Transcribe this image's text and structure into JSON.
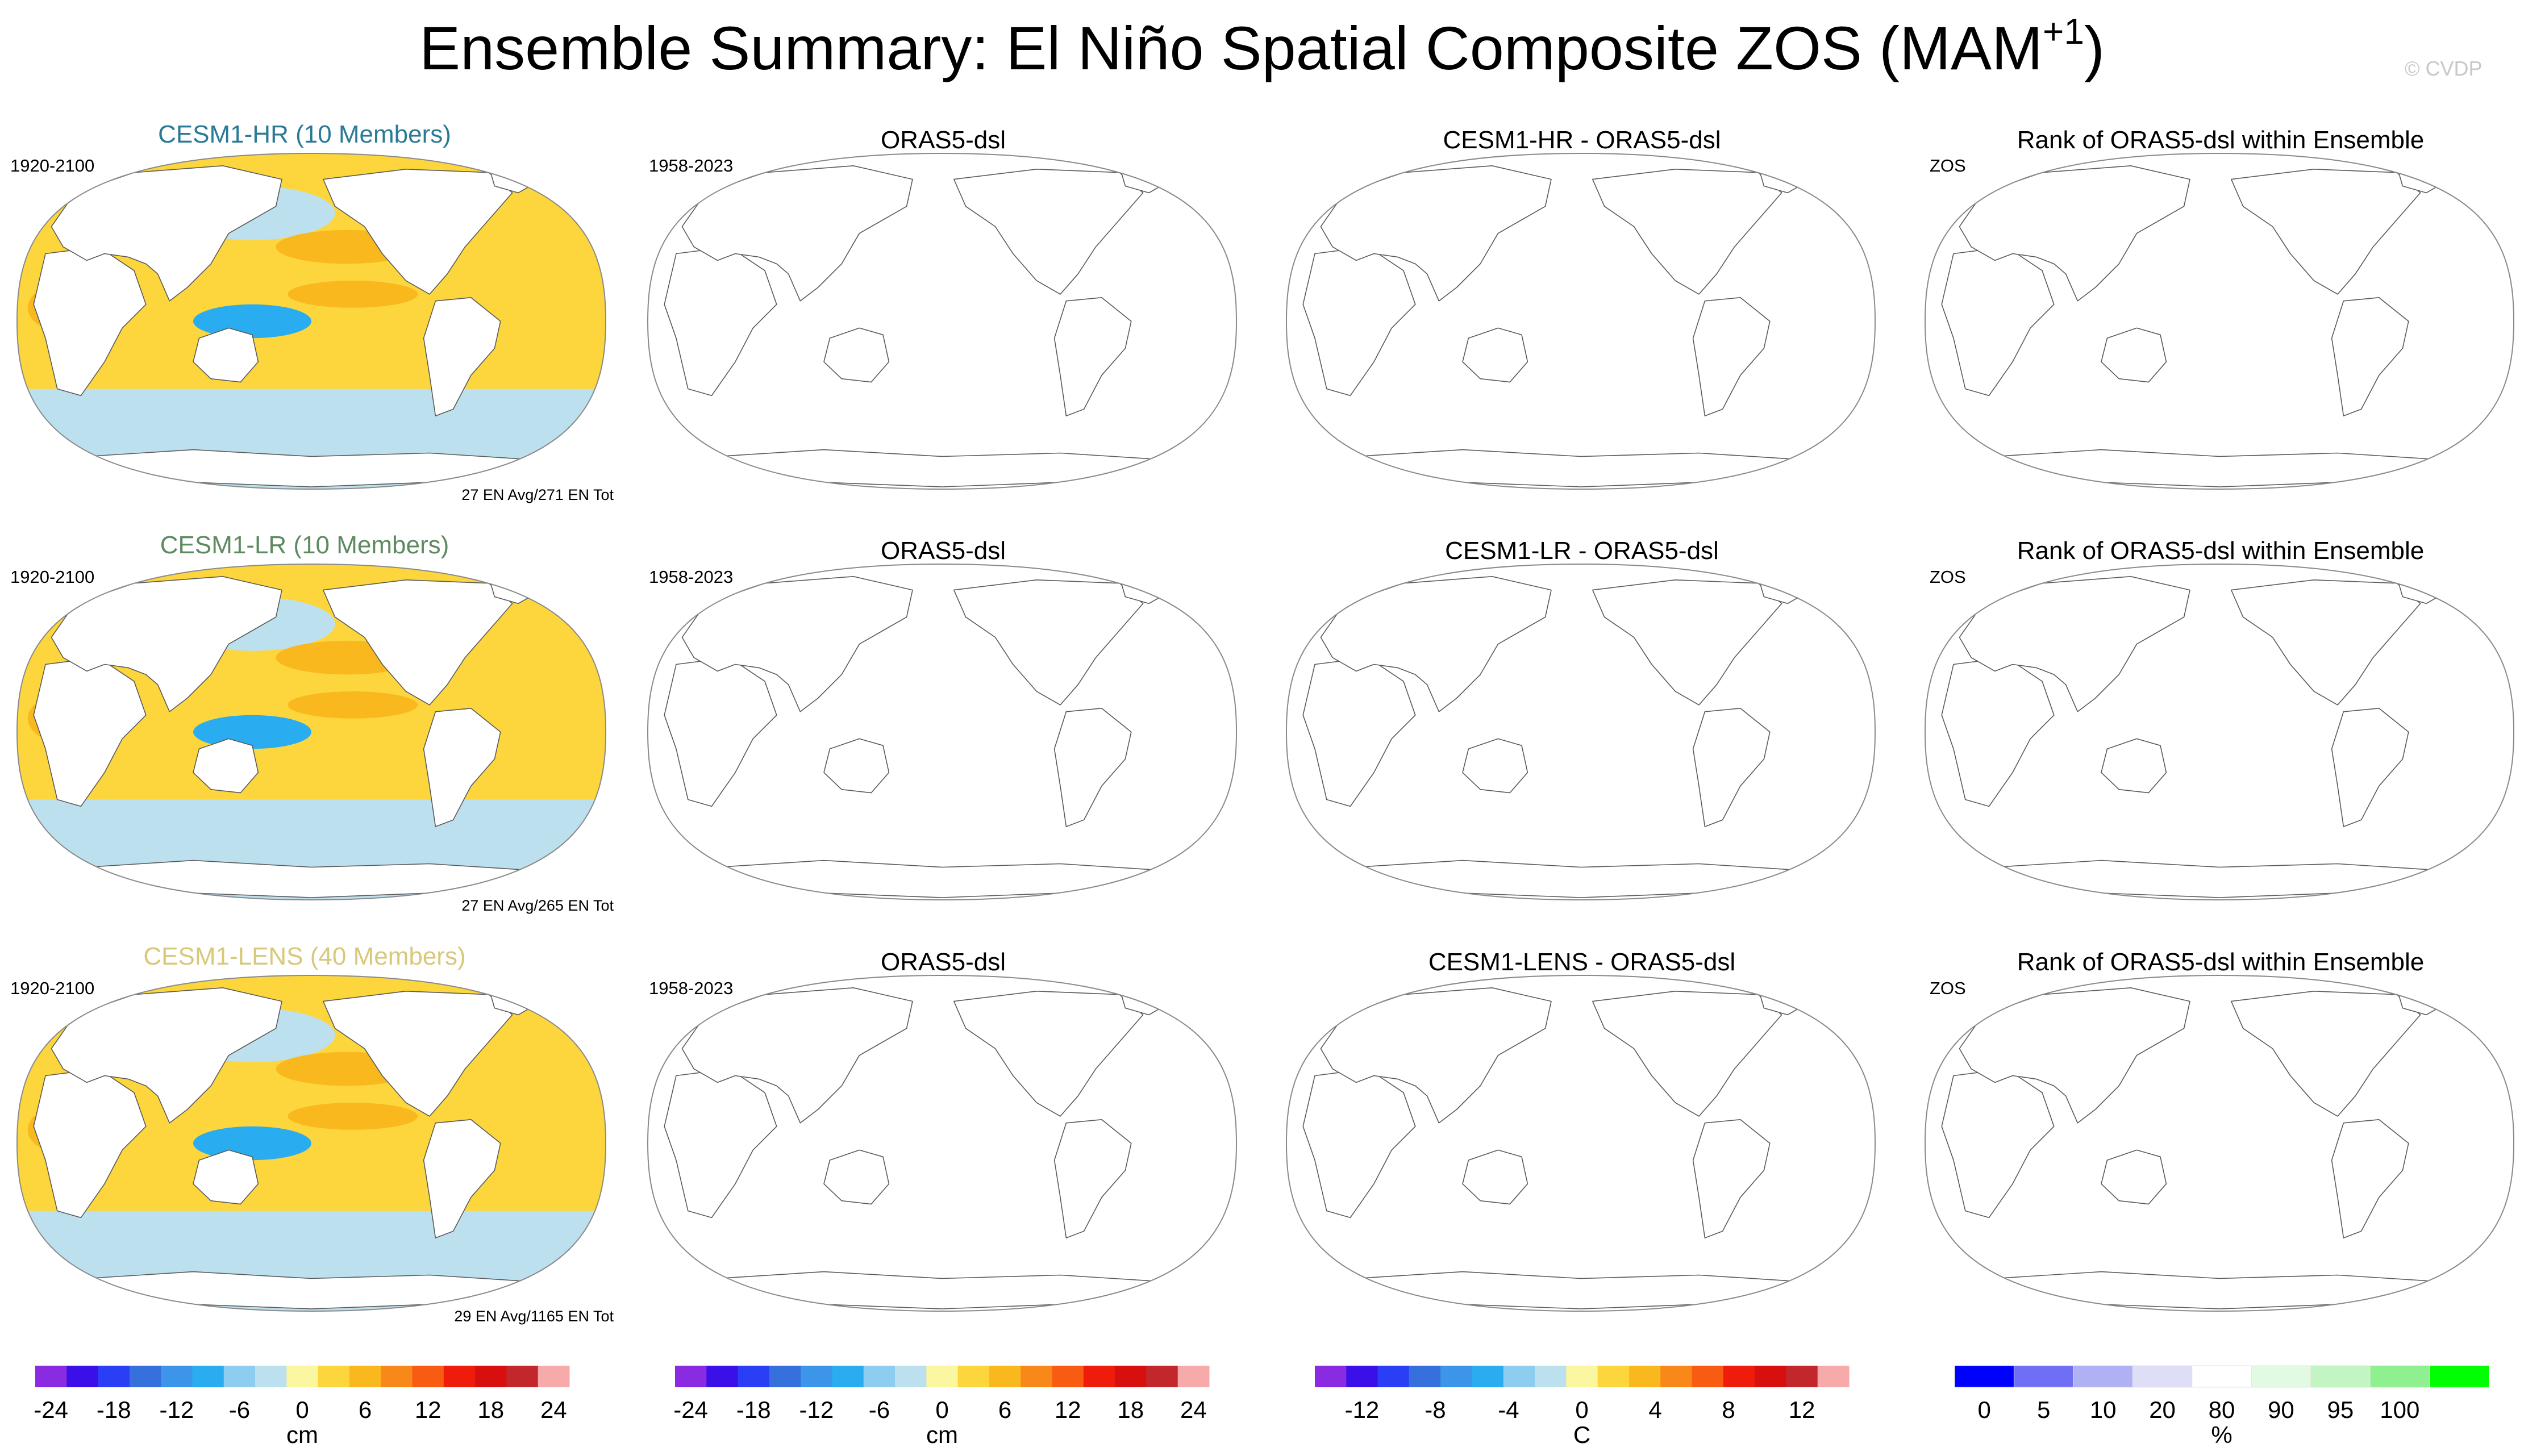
{
  "header": {
    "title": "Ensemble Summary: El Niño Spatial Composite ZOS (MAM",
    "title_sup": "+1",
    "title_close": ")",
    "watermark": "© CVDP"
  },
  "rows": [
    {
      "model": {
        "title": "CESM1-HR (10 Members)",
        "title_color": "#2a7a96",
        "years": "1920-2100",
        "note": "27 EN Avg/271 EN Tot"
      },
      "obs": {
        "title": "ORAS5-dsl",
        "years": "1958-2023"
      },
      "diff": {
        "title": "CESM1-HR - ORAS5-dsl"
      },
      "rank": {
        "title": "Rank of ORAS5-dsl within Ensemble",
        "label": "ZOS"
      }
    },
    {
      "model": {
        "title": "CESM1-LR (10 Members)",
        "title_color": "#5e8a62",
        "years": "1920-2100",
        "note": "27 EN Avg/265 EN Tot"
      },
      "obs": {
        "title": "ORAS5-dsl",
        "years": "1958-2023"
      },
      "diff": {
        "title": "CESM1-LR - ORAS5-dsl"
      },
      "rank": {
        "title": "Rank of ORAS5-dsl within Ensemble",
        "label": "ZOS"
      }
    },
    {
      "model": {
        "title": "CESM1-LENS (40 Members)",
        "title_color": "#d8c87a",
        "years": "1920-2100",
        "note": "29 EN Avg/1165 EN Tot"
      },
      "obs": {
        "title": "ORAS5-dsl",
        "years": "1958-2023"
      },
      "diff": {
        "title": "CESM1-LENS - ORAS5-dsl"
      },
      "rank": {
        "title": "Rank of ORAS5-dsl within Ensemble",
        "label": "ZOS"
      }
    }
  ],
  "chart_data": {
    "type": "heatmap",
    "projection": "Robinson, Pacific-centered",
    "patterns": [
      {
        "region": "Indian Ocean",
        "value_cm": 8
      },
      {
        "region": "Western tropical Pacific",
        "value_cm": -10
      },
      {
        "region": "Central-eastern equatorial Pacific",
        "value_cm": 8
      },
      {
        "region": "Southern Ocean",
        "value_cm": -3
      },
      {
        "region": "Midlatitudes",
        "value_cm": 2
      }
    ],
    "colorbars": [
      {
        "name": "model",
        "unit": "cm",
        "colors": [
          "#8a2be2",
          "#3b0fe8",
          "#2a3ff5",
          "#3670dd",
          "#3c95e8",
          "#2aacf0",
          "#8dcdf0",
          "#bde0ef",
          "#fbf6a0",
          "#fcd63c",
          "#f9b81d",
          "#f9881a",
          "#f85c12",
          "#f01c0b",
          "#d80f0f",
          "#c2282b",
          "#f7aaaa"
        ],
        "ticks": [
          "-24",
          "-18",
          "-12",
          "-6",
          "0",
          "6",
          "12",
          "18",
          "24"
        ]
      },
      {
        "name": "obs",
        "unit": "cm",
        "colors": [
          "#8a2be2",
          "#3b0fe8",
          "#2a3ff5",
          "#3670dd",
          "#3c95e8",
          "#2aacf0",
          "#8dcdf0",
          "#bde0ef",
          "#fbf6a0",
          "#fcd63c",
          "#f9b81d",
          "#f9881a",
          "#f85c12",
          "#f01c0b",
          "#d80f0f",
          "#c2282b",
          "#f7aaaa"
        ],
        "ticks": [
          "-24",
          "-18",
          "-12",
          "-6",
          "0",
          "6",
          "12",
          "18",
          "24"
        ]
      },
      {
        "name": "diff",
        "unit": "C",
        "colors": [
          "#8a2be2",
          "#3b0fe8",
          "#2a3ff5",
          "#3670dd",
          "#3c95e8",
          "#2aacf0",
          "#8dcdf0",
          "#bde0ef",
          "#fbf6a0",
          "#fcd63c",
          "#f9b81d",
          "#f9881a",
          "#f85c12",
          "#f01c0b",
          "#d80f0f",
          "#c2282b",
          "#f7aaaa"
        ],
        "ticks": [
          "-12",
          "-8",
          "-4",
          "0",
          "4",
          "8",
          "12"
        ]
      },
      {
        "name": "rank",
        "unit": "%",
        "colors": [
          "#0000ff",
          "#6f6ff5",
          "#b0b0f5",
          "#dedef7",
          "#ffffff",
          "#e2f9e2",
          "#c3f5c3",
          "#8ef08e",
          "#00ff00"
        ],
        "ticks": [
          "0",
          "5",
          "10",
          "20",
          "80",
          "90",
          "95",
          "100"
        ]
      }
    ]
  }
}
